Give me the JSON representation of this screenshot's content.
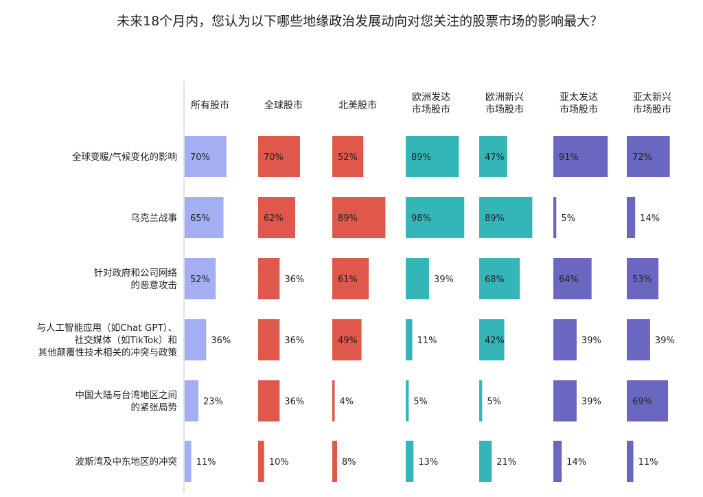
{
  "chart_data": {
    "type": "bar",
    "title": "未来18个月内，您认为以下哪些地缘政治发展动向对您关注的股票市场的影响最大？",
    "value_suffix": "%",
    "xlim": [
      0,
      100
    ],
    "series": [
      {
        "name": [
          "所有股市"
        ],
        "color": "#a4aef3",
        "values": [
          70,
          65,
          52,
          36,
          23,
          11
        ]
      },
      {
        "name": [
          "全球股市"
        ],
        "color": "#e0574b",
        "values": [
          70,
          62,
          36,
          36,
          36,
          10
        ]
      },
      {
        "name": [
          "北美股市"
        ],
        "color": "#e0574b",
        "values": [
          52,
          89,
          61,
          49,
          4,
          8
        ]
      },
      {
        "name": [
          "欧洲发达",
          "市场股市"
        ],
        "color": "#34b6b8",
        "values": [
          89,
          98,
          39,
          11,
          5,
          13
        ]
      },
      {
        "name": [
          "欧洲新兴",
          "市场股市"
        ],
        "color": "#34b6b8",
        "values": [
          47,
          89,
          68,
          42,
          5,
          21
        ]
      },
      {
        "name": [
          "亚太发达",
          "市场股市"
        ],
        "color": "#6b67c0",
        "values": [
          91,
          5,
          64,
          39,
          39,
          14
        ]
      },
      {
        "name": [
          "亚太新兴",
          "市场股市"
        ],
        "color": "#6b67c0",
        "values": [
          72,
          14,
          53,
          39,
          69,
          11
        ]
      }
    ],
    "categories": [
      [
        "全球变暖/气候变化的影响"
      ],
      [
        "乌克兰战事"
      ],
      [
        "针对政府和公司网络",
        "的恶意攻击"
      ],
      [
        "与人工智能应用（如Chat GPT）、",
        "社交媒体（如TikTok）和",
        "其他颠覆性技术相关的冲突与政策"
      ],
      [
        "中国大陆与台湾地区之间",
        "的紧张局势"
      ],
      [
        "波斯湾及中东地区的冲突"
      ]
    ]
  }
}
